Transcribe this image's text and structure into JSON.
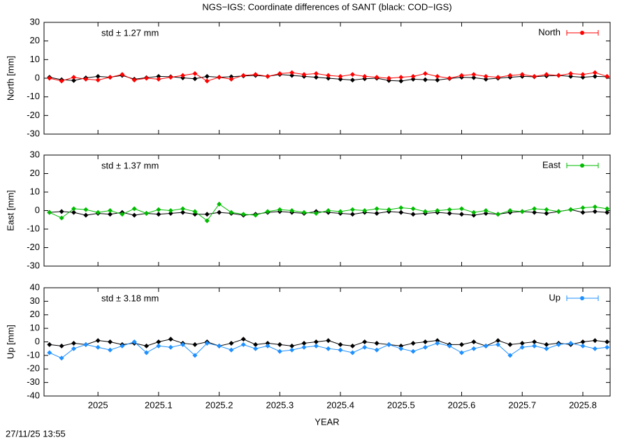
{
  "title": "NGS−IGS: Coordinate differences of SANT (black: COD−IGS)",
  "x_label": "YEAR",
  "timestamp": "27/11/25 13:55",
  "chart_data": [
    {
      "type": "line",
      "y_label": "North [mm]",
      "annotation": "std ± 1.27 mm",
      "legend": "upper right",
      "xlim": [
        2024.911,
        2025.845
      ],
      "xticks": [
        2025,
        2025.1,
        2025.2,
        2025.3,
        2025.4,
        2025.5,
        2025.6,
        2025.7,
        2025.8
      ],
      "ylim": [
        -30,
        30
      ],
      "yticks": [
        -30,
        -20,
        -10,
        0,
        10,
        20,
        30
      ],
      "x": [
        2024.92,
        2024.94,
        2024.96,
        2024.98,
        2025.0,
        2025.02,
        2025.04,
        2025.06,
        2025.08,
        2025.1,
        2025.12,
        2025.14,
        2025.16,
        2025.18,
        2025.2,
        2025.22,
        2025.24,
        2025.26,
        2025.28,
        2025.3,
        2025.32,
        2025.34,
        2025.36,
        2025.38,
        2025.4,
        2025.42,
        2025.44,
        2025.46,
        2025.48,
        2025.5,
        2025.52,
        2025.54,
        2025.56,
        2025.58,
        2025.6,
        2025.62,
        2025.64,
        2025.66,
        2025.68,
        2025.7,
        2025.72,
        2025.74,
        2025.76,
        2025.78,
        2025.8,
        2025.82,
        2025.84
      ],
      "series": [
        {
          "color": "#000000",
          "values": [
            0.5,
            -0.8,
            -1.2,
            0.2,
            1.0,
            0.5,
            1.5,
            -0.5,
            0.3,
            1.0,
            0.8,
            0.2,
            -0.3,
            1.0,
            0.5,
            0.8,
            1.2,
            1.5,
            1.0,
            2.0,
            1.5,
            1.0,
            0.5,
            0.0,
            -0.5,
            -1.0,
            -0.3,
            0.0,
            -1.2,
            -1.5,
            -0.5,
            -0.8,
            -1.0,
            -0.2,
            0.5,
            0.3,
            -0.5,
            0.0,
            0.5,
            1.0,
            0.8,
            1.2,
            1.5,
            1.0,
            0.5,
            1.0,
            0.8
          ]
        },
        {
          "name": "North",
          "color": "#ff0000",
          "values": [
            0.0,
            -1.5,
            0.5,
            -0.5,
            -1.0,
            0.5,
            2.0,
            -1.0,
            0.0,
            -0.5,
            0.5,
            1.5,
            2.5,
            -1.5,
            0.5,
            -0.5,
            1.5,
            2.0,
            1.0,
            2.5,
            3.0,
            2.0,
            2.5,
            1.5,
            1.0,
            2.0,
            1.0,
            0.5,
            0.0,
            0.5,
            1.0,
            2.5,
            1.0,
            0.0,
            1.5,
            2.0,
            1.0,
            0.5,
            1.5,
            2.0,
            1.0,
            2.0,
            1.5,
            2.5,
            2.0,
            3.0,
            1.0
          ]
        }
      ]
    },
    {
      "type": "line",
      "y_label": "East [mm]",
      "annotation": "std ± 1.37 mm",
      "legend": "upper right",
      "xlim": [
        2024.911,
        2025.845
      ],
      "xticks": [
        2025,
        2025.1,
        2025.2,
        2025.3,
        2025.4,
        2025.5,
        2025.6,
        2025.7,
        2025.8
      ],
      "ylim": [
        -30,
        30
      ],
      "yticks": [
        -30,
        -20,
        -10,
        0,
        10,
        20,
        30
      ],
      "x": [
        2024.92,
        2024.94,
        2024.96,
        2024.98,
        2025.0,
        2025.02,
        2025.04,
        2025.06,
        2025.08,
        2025.1,
        2025.12,
        2025.14,
        2025.16,
        2025.18,
        2025.2,
        2025.22,
        2025.24,
        2025.26,
        2025.28,
        2025.3,
        2025.32,
        2025.34,
        2025.36,
        2025.38,
        2025.4,
        2025.42,
        2025.44,
        2025.46,
        2025.48,
        2025.5,
        2025.52,
        2025.54,
        2025.56,
        2025.58,
        2025.6,
        2025.62,
        2025.64,
        2025.66,
        2025.68,
        2025.7,
        2025.72,
        2025.74,
        2025.76,
        2025.78,
        2025.8,
        2025.82,
        2025.84
      ],
      "series": [
        {
          "color": "#000000",
          "values": [
            -1.0,
            -0.5,
            -1.0,
            -2.5,
            -1.5,
            -2.0,
            -1.0,
            -2.5,
            -1.5,
            -2.0,
            -1.5,
            -1.0,
            -2.0,
            -2.0,
            -1.0,
            -1.5,
            -2.5,
            -2.0,
            -1.0,
            -0.5,
            -1.0,
            -1.5,
            -0.5,
            -1.0,
            -1.5,
            -2.0,
            -1.0,
            -1.5,
            -0.5,
            -1.0,
            -2.0,
            -1.5,
            -1.0,
            -1.5,
            -2.0,
            -2.5,
            -1.5,
            -2.0,
            -1.0,
            -0.5,
            -1.0,
            -1.5,
            -0.5,
            0.5,
            -1.0,
            -0.5,
            -1.0
          ]
        },
        {
          "name": "East",
          "color": "#00bb00",
          "values": [
            -1.0,
            -4.0,
            1.0,
            0.5,
            -1.0,
            0.0,
            -2.0,
            1.0,
            -1.5,
            0.5,
            0.0,
            1.0,
            -0.5,
            -5.5,
            3.5,
            -1.0,
            -2.0,
            -2.5,
            -0.5,
            0.5,
            0.0,
            -1.0,
            -1.5,
            0.0,
            -0.5,
            0.5,
            0.0,
            1.0,
            0.5,
            1.5,
            1.0,
            -0.5,
            0.0,
            0.5,
            1.0,
            -1.0,
            0.0,
            -2.0,
            0.0,
            -0.5,
            1.0,
            0.5,
            -0.5,
            0.5,
            1.5,
            2.0,
            1.0
          ]
        }
      ]
    },
    {
      "type": "line",
      "y_label": "Up [mm]",
      "annotation": "std ± 3.18 mm",
      "legend": "upper right",
      "xlim": [
        2024.911,
        2025.845
      ],
      "xticks": [
        2025,
        2025.1,
        2025.2,
        2025.3,
        2025.4,
        2025.5,
        2025.6,
        2025.7,
        2025.8
      ],
      "ylim": [
        -40,
        40
      ],
      "yticks": [
        -40,
        -30,
        -20,
        -10,
        0,
        10,
        20,
        30,
        40
      ],
      "x": [
        2024.92,
        2024.94,
        2024.96,
        2024.98,
        2025.0,
        2025.02,
        2025.04,
        2025.06,
        2025.08,
        2025.1,
        2025.12,
        2025.14,
        2025.16,
        2025.18,
        2025.2,
        2025.22,
        2025.24,
        2025.26,
        2025.28,
        2025.3,
        2025.32,
        2025.34,
        2025.36,
        2025.38,
        2025.4,
        2025.42,
        2025.44,
        2025.46,
        2025.48,
        2025.5,
        2025.52,
        2025.54,
        2025.56,
        2025.58,
        2025.6,
        2025.62,
        2025.64,
        2025.66,
        2025.68,
        2025.7,
        2025.72,
        2025.74,
        2025.76,
        2025.78,
        2025.8,
        2025.82,
        2025.84
      ],
      "series": [
        {
          "color": "#000000",
          "values": [
            -2,
            -3,
            -1,
            -2,
            1,
            0,
            -2,
            -1,
            -3,
            0,
            2,
            -1,
            -2,
            0,
            -3,
            -1,
            2,
            -2,
            -1,
            -2,
            -3,
            -1,
            0,
            1,
            -2,
            -3,
            0,
            -1,
            -2,
            -3,
            -1,
            0,
            1,
            -2,
            -2,
            0,
            -3,
            1,
            -2,
            -1,
            0,
            -2,
            -1,
            -2,
            0,
            1,
            0
          ]
        },
        {
          "name": "Up",
          "color": "#1e90ff",
          "values": [
            -8,
            -12,
            -5,
            -2,
            -4,
            -6,
            -3,
            0,
            -8,
            -3,
            -4,
            -2,
            -10,
            -1,
            -3,
            -6,
            -2,
            -5,
            -3,
            -7,
            -6,
            -4,
            -3,
            -5,
            -6,
            -8,
            -4,
            -6,
            -2,
            -5,
            -7,
            -4,
            -1,
            -3,
            -8,
            -5,
            -3,
            -2,
            -10,
            -4,
            -3,
            -5,
            -2,
            -1,
            -3,
            -5,
            -4
          ]
        }
      ]
    }
  ]
}
